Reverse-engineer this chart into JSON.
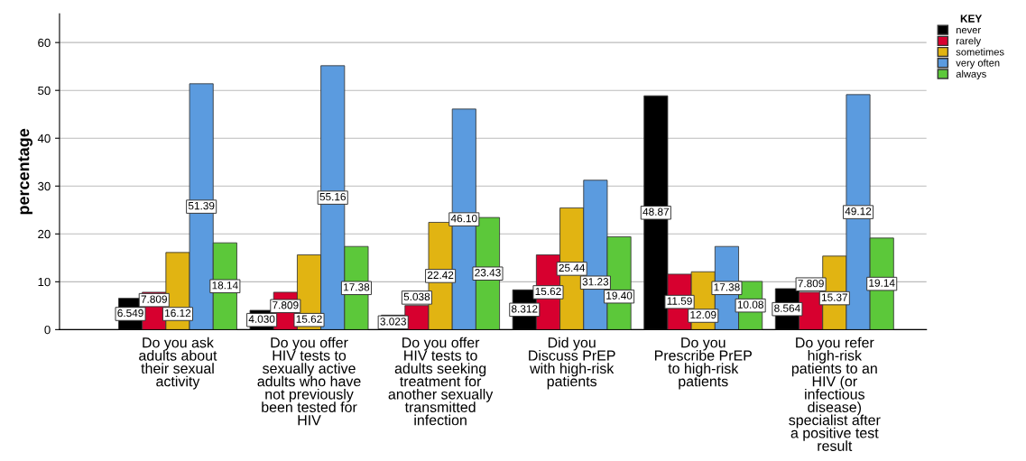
{
  "chart_data": {
    "type": "bar",
    "ylabel": "percentage",
    "legend_title": "KEY",
    "legend": "top right",
    "grid": "y",
    "categories": [
      "Do you ask\nadults about\ntheir sexual\nactivity",
      "Do you offer\nHIV tests to\nsexually active\nadults who have\nnot previously\nbeen tested for\nHIV",
      "Do you offer\nHIV tests to\nadults seeking\ntreatment for\nanother sexually\ntransmitted\ninfection",
      "Did you\nDiscuss PrEP\nwith high-risk\npatients",
      "Do you\nPrescribe PrEP\nto high-risk\npatients",
      "Do you refer\nhigh-risk\npatients to an\nHIV (or\ninfectious\ndisease)\nspecialist after\na positive test\nresult"
    ],
    "ylim": [
      0,
      66
    ],
    "yticks": [
      0,
      10,
      20,
      30,
      40,
      50,
      60
    ],
    "series": [
      {
        "name": "never",
        "color": "#000000",
        "values": [
          6.549,
          4.03,
          3.023,
          8.312,
          48.87,
          8.564
        ],
        "value_labels": [
          "6.549",
          "4.030",
          "3.023",
          "8.312",
          "48.87",
          "8.564"
        ]
      },
      {
        "name": "rarely",
        "color": "#d7002f",
        "values": [
          7.809,
          7.809,
          5.038,
          15.62,
          11.59,
          7.809
        ],
        "value_labels": [
          "7.809",
          "7.809",
          "5.038",
          "15.62",
          "11.59",
          "7.809"
        ]
      },
      {
        "name": "sometimes",
        "color": "#e1b412",
        "values": [
          16.12,
          15.62,
          22.42,
          25.44,
          12.09,
          15.37
        ],
        "value_labels": [
          "16.12",
          "15.62",
          "22.42",
          "25.44",
          "12.09",
          "15.37"
        ]
      },
      {
        "name": "very often",
        "color": "#5b9bdf",
        "values": [
          51.39,
          55.16,
          46.1,
          31.23,
          17.38,
          49.12
        ],
        "value_labels": [
          "51.39",
          "55.16",
          "46.10",
          "31.23",
          "17.38",
          "49.12"
        ]
      },
      {
        "name": "always",
        "color": "#5cc83a",
        "values": [
          18.14,
          17.38,
          23.43,
          19.4,
          10.08,
          19.14
        ],
        "value_labels": [
          "18.14",
          "17.38",
          "23.43",
          "19.40",
          "10.08",
          "19.14"
        ]
      }
    ]
  }
}
